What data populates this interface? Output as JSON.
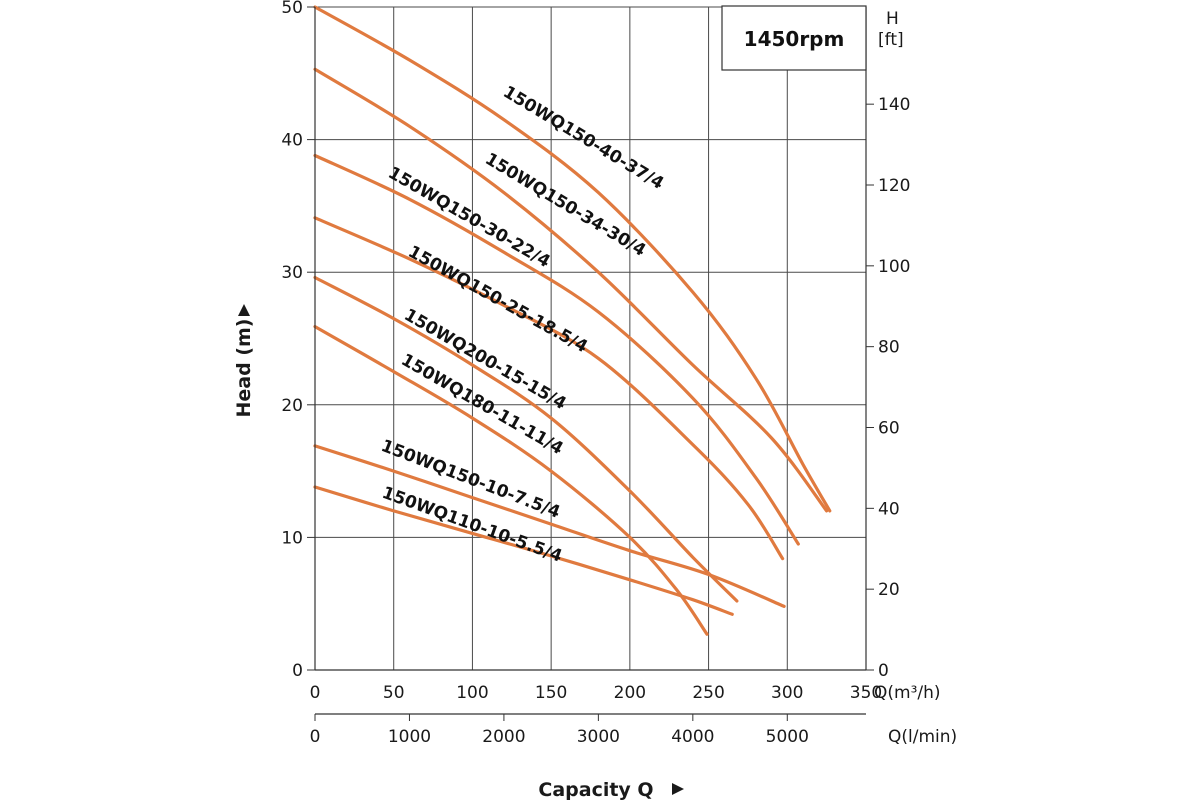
{
  "chart_data": {
    "type": "line",
    "title": "",
    "speed_label": "1450rpm",
    "ylabel": "Head (m)",
    "xlabel": "Capacity Q",
    "ylim": [
      0,
      50
    ],
    "xlim": [
      0,
      350
    ],
    "y_ticks": [
      "0",
      "10",
      "20",
      "30",
      "40",
      "50"
    ],
    "x_ticks": [
      "0",
      "50",
      "100",
      "150",
      "200",
      "250",
      "300",
      "350"
    ],
    "right_axis": {
      "label_line1": "H",
      "label_line2": "[ft]",
      "ticks": [
        "0",
        "20",
        "40",
        "60",
        "80",
        "100",
        "120",
        "140"
      ]
    },
    "x_unit": "Q(m³/h)",
    "secondary_x": {
      "label": "Q(l/min)",
      "ticks": [
        "0",
        "1000",
        "2000",
        "3000",
        "4000",
        "5000"
      ]
    },
    "grid": true,
    "line_color": "#E07A3F",
    "series": [
      {
        "name": "150WQ150-40-37/4",
        "x": [
          0,
          60,
          120,
          180,
          240,
          280,
          310,
          327
        ],
        "y": [
          50,
          46,
          41.5,
          36,
          28.5,
          22,
          15.5,
          12
        ]
      },
      {
        "name": "150WQ150-34-30/4",
        "x": [
          0,
          60,
          120,
          180,
          240,
          290,
          325
        ],
        "y": [
          45.3,
          41,
          36,
          30,
          23,
          17.5,
          12
        ]
      },
      {
        "name": "150WQ150-30-22/4",
        "x": [
          0,
          60,
          120,
          180,
          240,
          280,
          307
        ],
        "y": [
          38.8,
          35.5,
          31.5,
          27,
          20.5,
          14.5,
          9.5
        ]
      },
      {
        "name": "150WQ150-25-18.5/4",
        "x": [
          0,
          60,
          120,
          180,
          240,
          275,
          297
        ],
        "y": [
          34.1,
          31,
          27.5,
          23.5,
          17,
          12.5,
          8.4
        ]
      },
      {
        "name": "150WQ200-15-15/4",
        "x": [
          0,
          50,
          100,
          150,
          200,
          240,
          268
        ],
        "y": [
          29.6,
          26.5,
          23,
          19,
          13.5,
          8.5,
          5.2
        ]
      },
      {
        "name": "150WQ180-11-11/4",
        "x": [
          0,
          50,
          100,
          150,
          200,
          230,
          249
        ],
        "y": [
          25.9,
          22.5,
          19,
          15,
          10,
          6,
          2.7
        ]
      },
      {
        "name": "150WQ150-10-7.5/4",
        "x": [
          0,
          50,
          100,
          150,
          200,
          250,
          298
        ],
        "y": [
          16.9,
          15,
          13,
          11,
          9,
          7.2,
          4.8
        ]
      },
      {
        "name": "150WQ110-10-5.5/4",
        "x": [
          0,
          50,
          100,
          150,
          200,
          240,
          265
        ],
        "y": [
          13.8,
          12,
          10.3,
          8.6,
          6.8,
          5.3,
          4.2
        ]
      }
    ]
  }
}
